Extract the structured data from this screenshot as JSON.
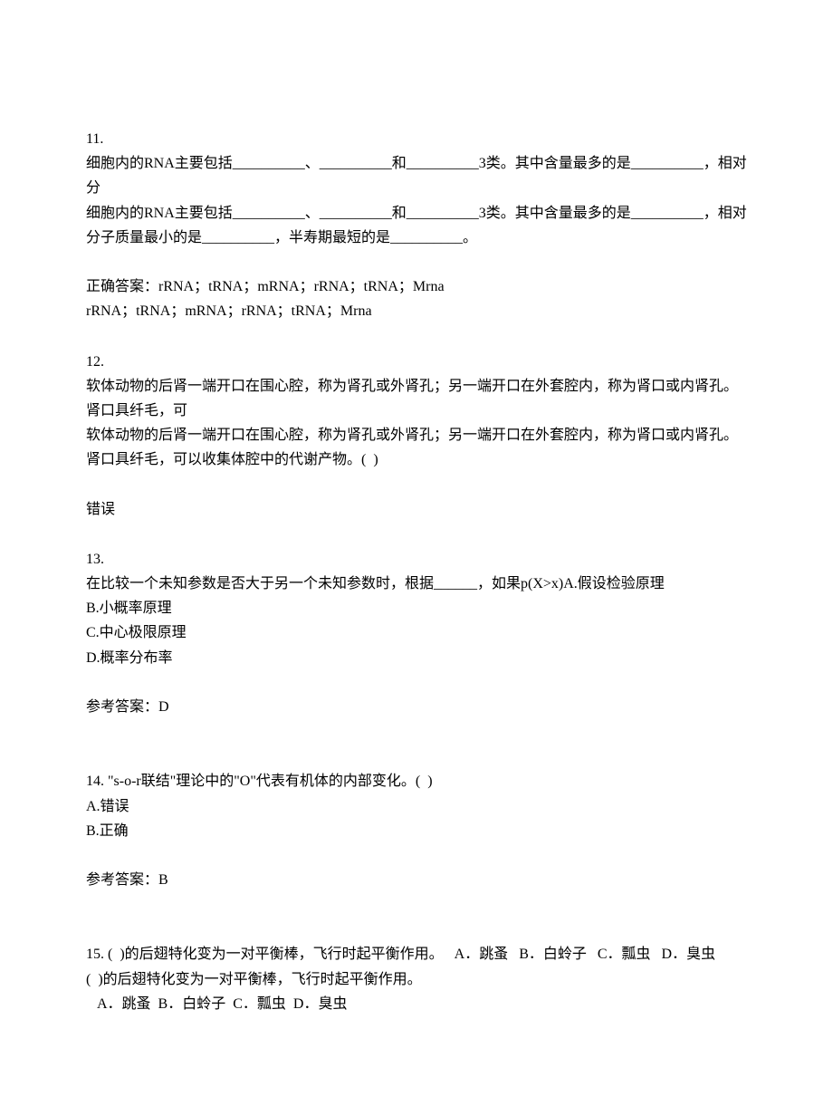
{
  "q11": {
    "num": "11.",
    "line1": "细胞内的RNA主要包括__________、__________和__________3类。其中含量最多的是__________，相对分",
    "line2": "细胞内的RNA主要包括__________、__________和__________3类。其中含量最多的是__________，相对分子质量最小的是__________，半寿期最短的是__________。",
    "answer_label": "正确答案：rRNA；tRNA；mRNA；rRNA；tRNA；Mrna",
    "answer_line2": "rRNA；tRNA；mRNA；rRNA；tRNA；Mrna"
  },
  "q12": {
    "num": "12.",
    "line1": "软体动物的后肾一端开口在围心腔，称为肾孔或外肾孔；另一端开口在外套腔内，称为肾口或内肾孔。肾口具纤毛，可",
    "line2": "软体动物的后肾一端开口在围心腔，称为肾孔或外肾孔；另一端开口在外套腔内，称为肾口或内肾孔。肾口具纤毛，可以收集体腔中的代谢产物。(  )",
    "answer": "错误"
  },
  "q13": {
    "num": "13.",
    "stem": "在比较一个未知参数是否大于另一个未知参数时，根据______，如果p(X>x)A.假设检验原理",
    "optB": "B.小概率原理",
    "optC": "C.中心极限原理",
    "optD": "D.概率分布率",
    "answer_label": "参考答案：D"
  },
  "q14": {
    "num": "14. ",
    "stem": "\"s-o-r联结\"理论中的\"O\"代表有机体的内部变化。(  )",
    "optA": "A.错误",
    "optB": "B.正确",
    "answer_label": "参考答案：B"
  },
  "q15": {
    "num": "15. ",
    "stem_line1": "(  )的后翅特化变为一对平衡棒，飞行时起平衡作用。   A．跳蚤   B．白蛉子   C．瓢虫   D．臭虫",
    "stem_line2": "(  )的后翅特化变为一对平衡棒，飞行时起平衡作用。",
    "options_line": "   A．跳蚤  B．白蛉子  C．瓢虫  D．臭虫"
  }
}
